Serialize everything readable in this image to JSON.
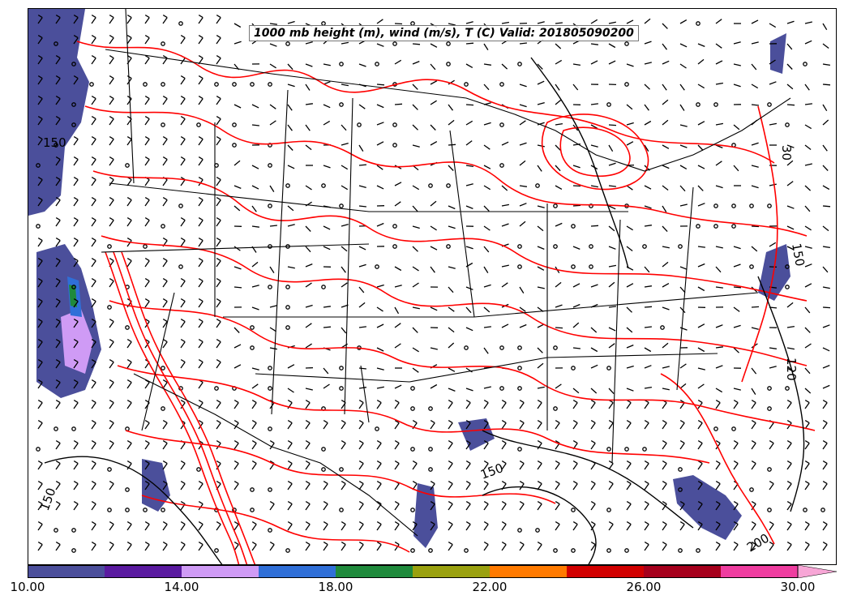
{
  "title": "1000 mb height (m), wind (m/s), T (C) Valid: 201805090200",
  "colorbar": {
    "colors": [
      "#4b4f9b",
      "#5a1aa0",
      "#cf9bf5",
      "#2f6fd8",
      "#1f8a3c",
      "#9aa10f",
      "#ff7a00",
      "#d10000",
      "#a6001c",
      "#ef3da0",
      "#f7a6d6"
    ],
    "tick_labels": [
      "10.00",
      "14.00",
      "18.00",
      "22.00",
      "26.00",
      "30.00"
    ],
    "min": 10,
    "max": 30,
    "step": 2,
    "extend": "max"
  },
  "contour_labels": [
    "150",
    "120",
    "150",
    "150",
    "30",
    "150",
    "200"
  ],
  "shading_color": "#4b4f9b",
  "temperature_line_color": "#ff0000",
  "height_line_color": "#000000",
  "wind_barb_color": "#000000"
}
